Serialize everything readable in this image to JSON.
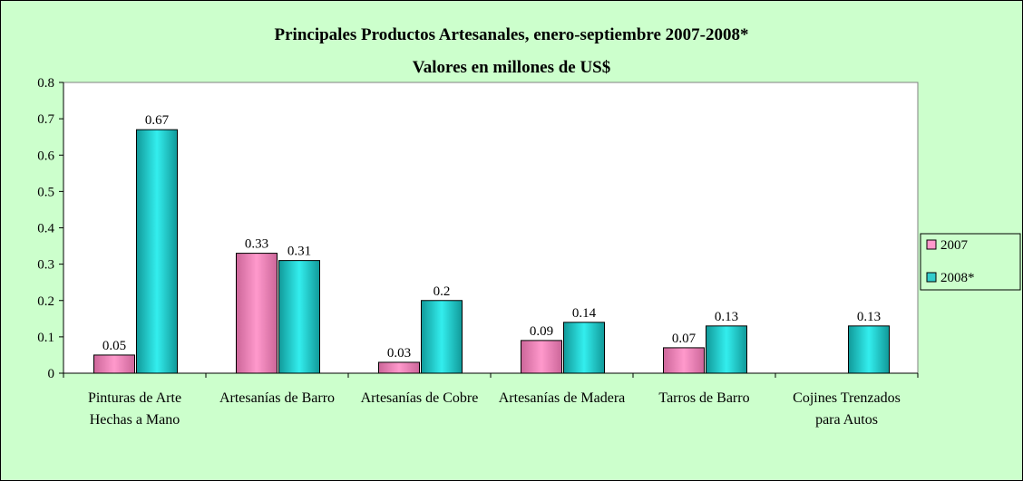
{
  "chart_data": {
    "type": "bar",
    "title": "Principales Productos Artesanales, enero-septiembre 2007-2008*",
    "subtitle": "Valores en millones de US$",
    "categories": [
      "Pinturas de Arte Hechas a Mano",
      "Artesanías de Barro",
      "Artesanías de Cobre",
      "Artesanías de Madera",
      "Tarros de Barro",
      "Cojines Trenzados para Autos"
    ],
    "series": [
      {
        "name": "2007",
        "color": "#ff99cc",
        "values": [
          0.05,
          0.33,
          0.03,
          0.09,
          0.07,
          null
        ]
      },
      {
        "name": "2008*",
        "color": "#33cccc",
        "values": [
          0.67,
          0.31,
          0.2,
          0.14,
          0.13,
          0.13
        ]
      }
    ],
    "ylim": [
      0,
      0.8
    ],
    "yticks": [
      0,
      0.1,
      0.2,
      0.3,
      0.4,
      0.5,
      0.6,
      0.7,
      0.8
    ],
    "legend": "right"
  }
}
